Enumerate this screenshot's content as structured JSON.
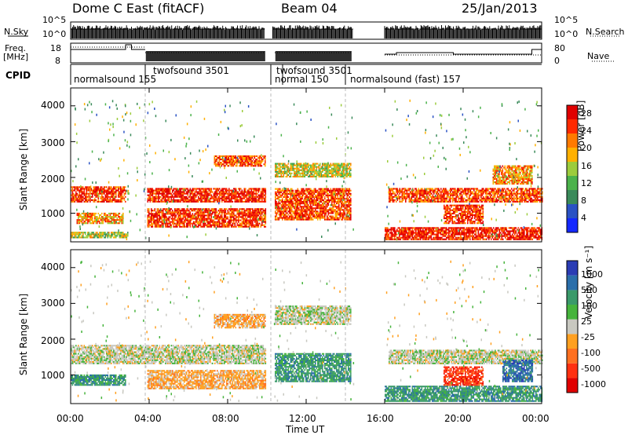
{
  "header": {
    "station": "Dome C East (fitACF)",
    "beam": "Beam 04",
    "date": "25/Jan/2013"
  },
  "strip_labels": {
    "nsky": "N.Sky",
    "nsearch": "N.Search",
    "freq_line1": "Freq.",
    "freq_line2": "[MHz]",
    "nave": "Nave",
    "cpid": "CPID"
  },
  "chart_data": [
    {
      "type": "line",
      "panel": "noise",
      "left_axis_ticks": [
        "10^5",
        "10^0"
      ],
      "right_axis_ticks": [
        "10^5",
        "10^0"
      ],
      "series": [
        {
          "name": "N.Sky",
          "style": "solid"
        },
        {
          "name": "N.Search",
          "style": "dotted"
        }
      ],
      "data_gaps_hours": [
        [
          9.9,
          10.3
        ],
        [
          14.4,
          16.0
        ]
      ]
    },
    {
      "type": "line",
      "panel": "frequency_nave",
      "left_axis_ticks": [
        "18",
        "8"
      ],
      "right_axis_ticks": [
        "80",
        "0"
      ],
      "series": [
        {
          "name": "Freq. [MHz]",
          "style": "solid"
        },
        {
          "name": "Nave",
          "style": "dotted"
        }
      ]
    },
    {
      "type": "table",
      "panel": "cpid",
      "segments": [
        {
          "label": "normalsound 155",
          "start_h": 0.0,
          "end_h": 3.8
        },
        {
          "label": "twofsound 3501",
          "start_h": 3.8,
          "end_h": 10.2
        },
        {
          "label": "normal 150",
          "start_h": 10.2,
          "end_h": 10.8
        },
        {
          "label": "twofsound 3501",
          "start_h": 10.8,
          "end_h": 14.0
        },
        {
          "label": "normalsound (fast) 157",
          "start_h": 14.0,
          "end_h": 24.0
        }
      ]
    },
    {
      "type": "heatmap",
      "panel": "power",
      "ylabel": "Slant Range [km]",
      "yticks": [
        1000,
        2000,
        3000,
        4000
      ],
      "ylim": [
        200,
        4500
      ],
      "xlim_hours": [
        0,
        24
      ],
      "colorbar": {
        "label": "Power [dB]",
        "ticks": [
          "4",
          "8",
          "12",
          "16",
          "20",
          "24",
          "28"
        ],
        "colors": [
          "#1428ff",
          "#2a52c4",
          "#3a8a5a",
          "#4bb24b",
          "#9ccc3c",
          "#ffb000",
          "#ff7a00",
          "#ff2a00",
          "#e00000"
        ]
      },
      "echo_bands": [
        {
          "t0": 0.0,
          "t1": 2.8,
          "r0": 1300,
          "r1": 1750,
          "level": 0.9
        },
        {
          "t0": 0.3,
          "t1": 2.7,
          "r0": 700,
          "r1": 1000,
          "level": 0.7
        },
        {
          "t0": 0.0,
          "t1": 2.9,
          "r0": 300,
          "r1": 450,
          "level": 0.5
        },
        {
          "t0": 3.9,
          "t1": 9.9,
          "r0": 1300,
          "r1": 1700,
          "level": 0.95
        },
        {
          "t0": 3.9,
          "t1": 9.9,
          "r0": 600,
          "r1": 1100,
          "level": 0.9
        },
        {
          "t0": 7.3,
          "t1": 9.9,
          "r0": 2300,
          "r1": 2600,
          "level": 0.85
        },
        {
          "t0": 10.4,
          "t1": 14.3,
          "r0": 800,
          "r1": 1700,
          "level": 0.85
        },
        {
          "t0": 10.4,
          "t1": 14.3,
          "r0": 2000,
          "r1": 2400,
          "level": 0.55
        },
        {
          "t0": 16.0,
          "t1": 24.0,
          "r0": 250,
          "r1": 600,
          "level": 0.95
        },
        {
          "t0": 16.2,
          "t1": 24.0,
          "r0": 1300,
          "r1": 1700,
          "level": 0.85
        },
        {
          "t0": 19.0,
          "t1": 21.0,
          "r0": 700,
          "r1": 1200,
          "level": 0.9
        },
        {
          "t0": 21.5,
          "t1": 23.5,
          "r0": 1800,
          "r1": 2300,
          "level": 0.7
        }
      ]
    },
    {
      "type": "heatmap",
      "panel": "velocity",
      "ylabel": "Slant Range [km]",
      "yticks": [
        1000,
        2000,
        3000,
        4000
      ],
      "ylim": [
        200,
        4500
      ],
      "xlim_hours": [
        0,
        24
      ],
      "colorbar": {
        "label": "Velocity [m s⁻¹]",
        "ticks": [
          "1000",
          "500",
          "100",
          "25",
          "-25",
          "-100",
          "-500",
          "-1000"
        ],
        "colors": [
          "#2a3cb4",
          "#2a6eaa",
          "#3a9a6a",
          "#46b43c",
          "#c8c8c0",
          "#ffa020",
          "#ff7020",
          "#ff3010",
          "#e00000"
        ]
      },
      "echo_bands": [
        {
          "t0": 0.0,
          "t1": 9.9,
          "r0": 1300,
          "r1": 1800,
          "v": "-25"
        },
        {
          "t0": 0.0,
          "t1": 2.8,
          "r0": 700,
          "r1": 1000,
          "v": "100"
        },
        {
          "t0": 3.9,
          "t1": 9.9,
          "r0": 600,
          "r1": 1100,
          "v": "-100"
        },
        {
          "t0": 7.3,
          "t1": 9.9,
          "r0": 2300,
          "r1": 2700,
          "v": "-100"
        },
        {
          "t0": 10.4,
          "t1": 14.3,
          "r0": 800,
          "r1": 1600,
          "v": "100"
        },
        {
          "t0": 10.4,
          "t1": 14.3,
          "r0": 2400,
          "r1": 2900,
          "v": "-25"
        },
        {
          "t0": 16.0,
          "t1": 24.0,
          "r0": 250,
          "r1": 700,
          "v": "100"
        },
        {
          "t0": 16.2,
          "t1": 24.0,
          "r0": 1300,
          "r1": 1700,
          "v": "-25"
        },
        {
          "t0": 19.0,
          "t1": 21.0,
          "r0": 700,
          "r1": 1200,
          "v": "-500"
        },
        {
          "t0": 22.0,
          "t1": 23.5,
          "r0": 800,
          "r1": 1400,
          "v": "500"
        }
      ]
    }
  ],
  "time_axis": {
    "ticks": [
      "00:00",
      "04:00",
      "08:00",
      "12:00",
      "16:00",
      "20:00",
      "00:00"
    ],
    "tick_hours": [
      0,
      4,
      8,
      12,
      16,
      20,
      24
    ],
    "label": "Time UT"
  }
}
